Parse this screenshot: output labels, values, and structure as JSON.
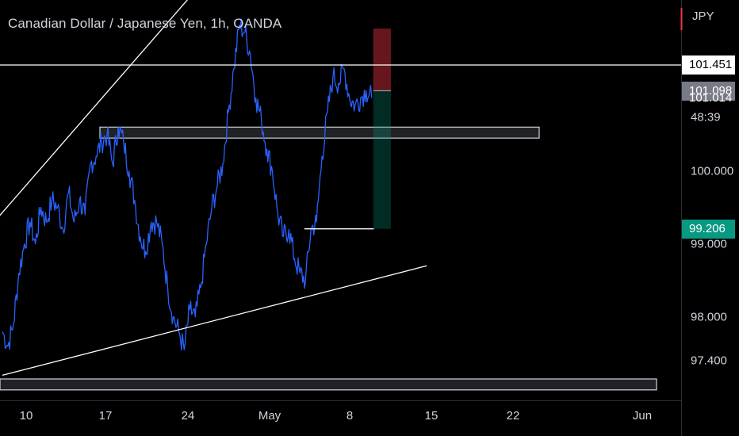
{
  "header": {
    "title": "Canadian Dollar / Japanese Yen, 1h, OANDA"
  },
  "price_scale": {
    "currency": "JPY",
    "countdown": "48:39",
    "tags": [
      {
        "label": "101.451",
        "value": 101.451,
        "bg": "#ffffff",
        "color": "#000000"
      },
      {
        "label": "101.098",
        "value": 101.098,
        "bg": "#787b86",
        "color": "#ffffff"
      },
      {
        "label": "101.014",
        "value": 101.014,
        "bg": "transparent",
        "color": "#ffffff"
      },
      {
        "label": "99.206",
        "value": 99.206,
        "bg": "#089981",
        "color": "#ffffff"
      }
    ]
  },
  "colors": {
    "background": "#000000",
    "price_line": "#2962ff",
    "drawing": "#ffffff",
    "zone_fill": "#787b86",
    "stop_zone": "#f23645",
    "target_zone": "#089981"
  },
  "chart_data": {
    "type": "line",
    "title": "Canadian Dollar / Japanese Yen, 1h, OANDA",
    "xlabel": "",
    "ylabel": "",
    "ylim": [
      97.0,
      102.5
    ],
    "grid": false,
    "x_ticks": [
      "10",
      "17",
      "24",
      "May",
      "8",
      "15",
      "22",
      "Jun"
    ],
    "y_ticks": [
      "97.400",
      "98.000",
      "99.000",
      "100.000",
      "101.014"
    ],
    "series": [
      {
        "values": [
          [
            0,
            97.8
          ],
          [
            1,
            97.6
          ],
          [
            2,
            97.9
          ],
          [
            3,
            98.6
          ],
          [
            4,
            99.0
          ],
          [
            5,
            99.3
          ],
          [
            6,
            99.0
          ],
          [
            7,
            99.5
          ],
          [
            8,
            99.3
          ],
          [
            9,
            99.6
          ],
          [
            10,
            99.5
          ],
          [
            11,
            99.2
          ],
          [
            12,
            99.7
          ],
          [
            13,
            99.3
          ],
          [
            14,
            99.6
          ],
          [
            15,
            99.4
          ],
          [
            16,
            100.1
          ],
          [
            17,
            100.2
          ],
          [
            18,
            100.4
          ],
          [
            19,
            100.5
          ],
          [
            20,
            100.1
          ],
          [
            21,
            100.6
          ],
          [
            22,
            100.4
          ],
          [
            23,
            100.0
          ],
          [
            24,
            99.6
          ],
          [
            25,
            99.1
          ],
          [
            26,
            98.9
          ],
          [
            27,
            99.3
          ],
          [
            28,
            99.3
          ],
          [
            29,
            99.0
          ],
          [
            30,
            98.4
          ],
          [
            31,
            98.0
          ],
          [
            32,
            97.8
          ],
          [
            33,
            97.55
          ],
          [
            34,
            98.1
          ],
          [
            35,
            98.0
          ],
          [
            36,
            98.4
          ],
          [
            37,
            99.0
          ],
          [
            38,
            99.5
          ],
          [
            39,
            99.8
          ],
          [
            40,
            100.1
          ],
          [
            41,
            100.8
          ],
          [
            42,
            101.4
          ],
          [
            43,
            102.0
          ],
          [
            44,
            101.9
          ],
          [
            45,
            101.6
          ],
          [
            46,
            101.0
          ],
          [
            47,
            100.7
          ],
          [
            48,
            100.3
          ],
          [
            49,
            100.0
          ],
          [
            50,
            99.4
          ],
          [
            51,
            99.1
          ],
          [
            52,
            99.2
          ],
          [
            53,
            98.8
          ],
          [
            54,
            98.6
          ],
          [
            55,
            98.5
          ],
          [
            56,
            99.2
          ],
          [
            57,
            99.3
          ],
          [
            58,
            100.2
          ],
          [
            59,
            100.8
          ],
          [
            60,
            101.3
          ],
          [
            61,
            101.2
          ],
          [
            62,
            101.4
          ],
          [
            63,
            101.0
          ],
          [
            64,
            100.9
          ],
          [
            65,
            101.0
          ],
          [
            66,
            101.1
          ],
          [
            67,
            101.0
          ]
        ]
      }
    ],
    "levels": [
      101.451,
      101.098,
      101.014,
      99.206
    ],
    "annotations": [
      {
        "type": "horizontal-line",
        "price": 101.451
      },
      {
        "type": "zone",
        "price_top": 100.6,
        "price_bottom": 100.45
      },
      {
        "type": "zone",
        "price_top": 97.15,
        "price_bottom": 97.0
      },
      {
        "type": "ray-line",
        "from": [
          -1.5,
          99.3
        ],
        "to": [
          44.6,
          103.3
        ]
      },
      {
        "type": "trend-line",
        "from": [
          0.0,
          97.2
        ],
        "to": [
          77.0,
          98.7
        ]
      },
      {
        "type": "horizontal-segment",
        "price": 99.206,
        "x_from": 54.8,
        "x_to": 67.4
      },
      {
        "type": "short-position",
        "entry": 101.098,
        "stop": 101.95,
        "target": 99.206,
        "x_from": 67.3,
        "x_to": 70.5
      }
    ]
  }
}
